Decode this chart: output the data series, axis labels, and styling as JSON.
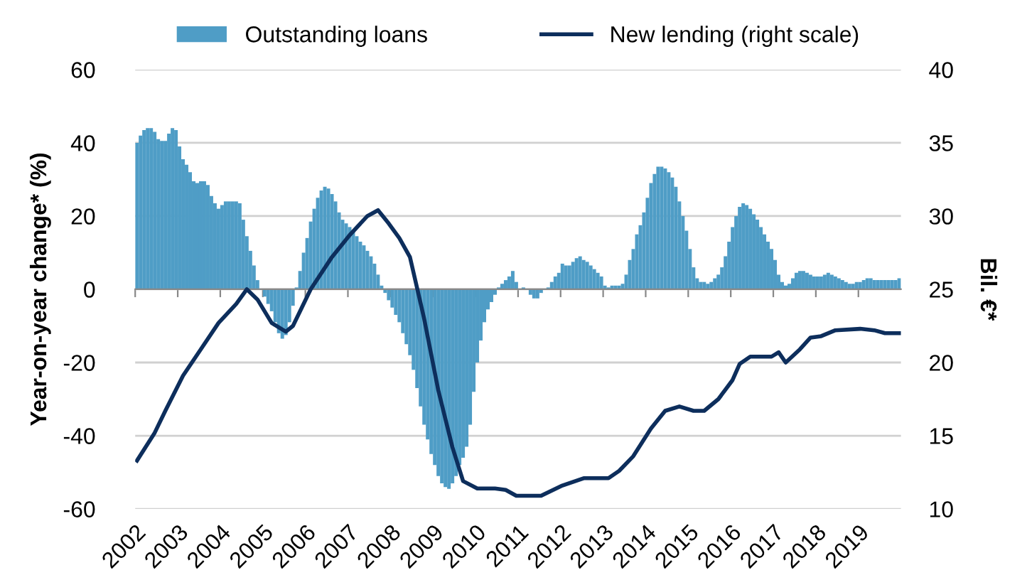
{
  "chart_data": {
    "type": "bar",
    "ylabel": "Year-on-year change* (%)",
    "y2label": "Bil. €*",
    "ylim": [
      -60,
      60
    ],
    "yticks": [
      -60,
      -40,
      -20,
      0,
      20,
      40,
      60
    ],
    "y2lim": [
      10,
      40
    ],
    "y2ticks": [
      10,
      15,
      20,
      25,
      30,
      35,
      40
    ],
    "xlim": [
      "2002",
      "2020"
    ],
    "xticks": [
      {
        "value": "2002",
        "label": "2002"
      },
      {
        "value": "2003",
        "label": "2003"
      },
      {
        "value": "2004",
        "label": "2004"
      },
      {
        "value": "2005",
        "label": "2005"
      },
      {
        "value": "2006",
        "label": "2006"
      },
      {
        "value": "2007",
        "label": "2007"
      },
      {
        "value": "2008",
        "label": "2008"
      },
      {
        "value": "2009",
        "label": "2009"
      },
      {
        "value": "2010",
        "label": "2010"
      },
      {
        "value": "2011",
        "label": "2011"
      },
      {
        "value": "2012",
        "label": "2012"
      },
      {
        "value": "2013",
        "label": "2013"
      },
      {
        "value": "2014",
        "label": "2014"
      },
      {
        "value": "2015",
        "label": "2015"
      },
      {
        "value": "2016",
        "label": "2016"
      },
      {
        "value": "2017",
        "label": "2017"
      },
      {
        "value": "2018",
        "label": "2018"
      },
      {
        "value": "2019",
        "label": "2019"
      }
    ],
    "grid": "y",
    "legend": "top",
    "series": [
      {
        "name": "Outstanding loans",
        "color": "#4f9dc6",
        "x": [
          "2002-01",
          "2002-02",
          "2002-03",
          "2002-04",
          "2002-05",
          "2002-06",
          "2002-07",
          "2002-08",
          "2002-09",
          "2002-10",
          "2002-11",
          "2002-12",
          "2003-01",
          "2003-02",
          "2003-03",
          "2003-04",
          "2003-05",
          "2003-06",
          "2003-07",
          "2003-08",
          "2003-09",
          "2003-10",
          "2003-11",
          "2003-12",
          "2004-01",
          "2004-02",
          "2004-03",
          "2004-04",
          "2004-05",
          "2004-06",
          "2004-07",
          "2004-08",
          "2004-09",
          "2004-10",
          "2004-11",
          "2004-12",
          "2005-01",
          "2005-02",
          "2005-03",
          "2005-04",
          "2005-05",
          "2005-06",
          "2005-07",
          "2005-08",
          "2005-09",
          "2005-10",
          "2005-11",
          "2005-12",
          "2006-01",
          "2006-02",
          "2006-03",
          "2006-04",
          "2006-05",
          "2006-06",
          "2006-07",
          "2006-08",
          "2006-09",
          "2006-10",
          "2006-11",
          "2006-12",
          "2007-01",
          "2007-02",
          "2007-03",
          "2007-04",
          "2007-05",
          "2007-06",
          "2007-07",
          "2007-08",
          "2007-09",
          "2007-10",
          "2007-11",
          "2007-12",
          "2008-01",
          "2008-02",
          "2008-03",
          "2008-04",
          "2008-05",
          "2008-06",
          "2008-07",
          "2008-08",
          "2008-09",
          "2008-10",
          "2008-11",
          "2008-12",
          "2009-01",
          "2009-02",
          "2009-03",
          "2009-04",
          "2009-05",
          "2009-06",
          "2009-07",
          "2009-08",
          "2009-09",
          "2009-10",
          "2009-11",
          "2009-12",
          "2010-01",
          "2010-02",
          "2010-03",
          "2010-04",
          "2010-05",
          "2010-06",
          "2010-07",
          "2010-08",
          "2010-09",
          "2010-10",
          "2010-11",
          "2010-12",
          "2011-01",
          "2011-02",
          "2011-03",
          "2011-04",
          "2011-05",
          "2011-06",
          "2011-07",
          "2011-08",
          "2011-09",
          "2011-10",
          "2011-11",
          "2011-12",
          "2012-01",
          "2012-02",
          "2012-03",
          "2012-04",
          "2012-05",
          "2012-06",
          "2012-07",
          "2012-08",
          "2012-09",
          "2012-10",
          "2012-11",
          "2012-12",
          "2013-01",
          "2013-02",
          "2013-03",
          "2013-04",
          "2013-05",
          "2013-06",
          "2013-07",
          "2013-08",
          "2013-09",
          "2013-10",
          "2013-11",
          "2013-12",
          "2014-01",
          "2014-02",
          "2014-03",
          "2014-04",
          "2014-05",
          "2014-06",
          "2014-07",
          "2014-08",
          "2014-09",
          "2014-10",
          "2014-11",
          "2014-12",
          "2015-01",
          "2015-02",
          "2015-03",
          "2015-04",
          "2015-05",
          "2015-06",
          "2015-07",
          "2015-08",
          "2015-09",
          "2015-10",
          "2015-11",
          "2015-12",
          "2016-01",
          "2016-02",
          "2016-03",
          "2016-04",
          "2016-05",
          "2016-06",
          "2016-07",
          "2016-08",
          "2016-09",
          "2016-10",
          "2016-11",
          "2016-12",
          "2017-01",
          "2017-02",
          "2017-03",
          "2017-04",
          "2017-05",
          "2017-06",
          "2017-07",
          "2017-08",
          "2017-09",
          "2017-10",
          "2017-11",
          "2017-12",
          "2018-01",
          "2018-02",
          "2018-03",
          "2018-04",
          "2018-05",
          "2018-06",
          "2018-07",
          "2018-08",
          "2018-09",
          "2018-10",
          "2018-11",
          "2018-12",
          "2019-01",
          "2019-02",
          "2019-03",
          "2019-04",
          "2019-05",
          "2019-06",
          "2019-07",
          "2019-08",
          "2019-09",
          "2019-10",
          "2019-11",
          "2019-12"
        ],
        "values": [
          40,
          42,
          43.5,
          44,
          44,
          43,
          41,
          40.5,
          40.5,
          42.5,
          44,
          43.5,
          39,
          35.5,
          34,
          32,
          29.5,
          29,
          29.5,
          29.5,
          28.5,
          25.5,
          23.5,
          22,
          23,
          24,
          24,
          24,
          24,
          23.5,
          19,
          14.5,
          10.5,
          6.5,
          2.5,
          0,
          -2,
          -4,
          -6,
          -9,
          -12,
          -13.5,
          -12.5,
          -9,
          -4.5,
          0.5,
          5,
          10,
          14,
          18.5,
          22,
          25,
          27,
          28,
          27.5,
          26,
          24,
          21,
          19,
          18,
          17,
          16,
          14.5,
          13,
          12,
          10.5,
          9,
          7,
          4,
          1,
          -1,
          -3,
          -5,
          -7,
          -9,
          -12,
          -15,
          -18,
          -22,
          -27,
          -32,
          -37,
          -41,
          -45,
          -48,
          -51,
          -53,
          -54,
          -54.5,
          -53,
          -51,
          -48,
          -46,
          -43,
          -37,
          -28,
          -20,
          -14,
          -9,
          -5.5,
          -3.5,
          -1.5,
          0.5,
          1.5,
          2.5,
          3.5,
          5,
          2,
          0,
          0.5,
          0,
          -1.5,
          -2.5,
          -2.5,
          -1,
          0,
          0.5,
          2,
          3.5,
          4.5,
          7,
          6.5,
          6.5,
          7.5,
          8.5,
          9,
          8,
          7.5,
          6.5,
          5.5,
          4.5,
          3.5,
          1,
          0.5,
          1,
          1,
          1,
          1.5,
          4,
          8,
          11,
          15,
          17.5,
          21,
          25,
          29,
          31.5,
          33.5,
          33.5,
          33,
          32,
          30.5,
          28,
          24,
          20,
          16,
          11,
          6,
          3,
          2,
          2,
          1.5,
          2,
          3,
          4,
          6,
          9,
          13,
          17,
          20,
          22.5,
          23.5,
          23,
          22,
          20.5,
          19,
          17,
          15,
          13,
          11,
          8,
          4,
          2,
          1,
          1.5,
          3,
          4.5,
          5,
          5,
          4.5,
          4,
          3.5,
          3.5,
          3.5,
          4,
          4.5,
          4,
          3.5,
          3,
          2.5,
          2,
          1.5,
          1.5,
          2,
          2,
          2.5,
          3,
          3,
          2.5,
          2.5,
          2.5,
          2.5,
          2.5,
          2.5,
          2.5,
          3
        ]
      },
      {
        "name": "New lending (right scale)",
        "type": "line",
        "axis": "y2",
        "color": "#0d2e5c",
        "marker": "none",
        "line_style": "solid",
        "x": [
          "2002-01",
          "2002-06",
          "2002-09",
          "2003-02",
          "2003-07",
          "2003-12",
          "2004-05",
          "2004-08",
          "2004-11",
          "2005-03",
          "2005-07",
          "2005-09",
          "2006-02",
          "2006-08",
          "2007-01",
          "2007-06",
          "2007-09",
          "2007-12",
          "2008-03",
          "2008-06",
          "2008-10",
          "2009-02",
          "2009-06",
          "2009-09",
          "2010-01",
          "2010-06",
          "2010-09",
          "2010-12",
          "2011-07",
          "2012-01",
          "2012-07",
          "2013-02",
          "2013-05",
          "2013-09",
          "2014-02",
          "2014-06",
          "2014-10",
          "2015-02",
          "2015-05",
          "2015-09",
          "2016-01",
          "2016-03",
          "2016-06",
          "2016-09",
          "2016-12",
          "2017-02",
          "2017-04",
          "2017-08",
          "2017-11",
          "2018-02",
          "2018-06",
          "2019-01",
          "2019-05",
          "2019-08",
          "2019-12"
        ],
        "values": [
          13.3,
          15.2,
          16.7,
          19.1,
          20.9,
          22.7,
          24.0,
          25.0,
          24.3,
          22.7,
          22.1,
          22.5,
          25.0,
          27.2,
          28.7,
          30.0,
          30.4,
          29.5,
          28.5,
          27.2,
          23.0,
          18.1,
          14.2,
          11.9,
          11.4,
          11.4,
          11.3,
          10.9,
          10.9,
          11.6,
          12.1,
          12.1,
          12.6,
          13.6,
          15.5,
          16.7,
          17.0,
          16.7,
          16.7,
          17.5,
          18.8,
          19.9,
          20.4,
          20.4,
          20.4,
          20.7,
          20.0,
          20.9,
          21.7,
          21.8,
          22.2,
          22.3,
          22.2,
          22.0,
          22.0
        ]
      }
    ]
  }
}
